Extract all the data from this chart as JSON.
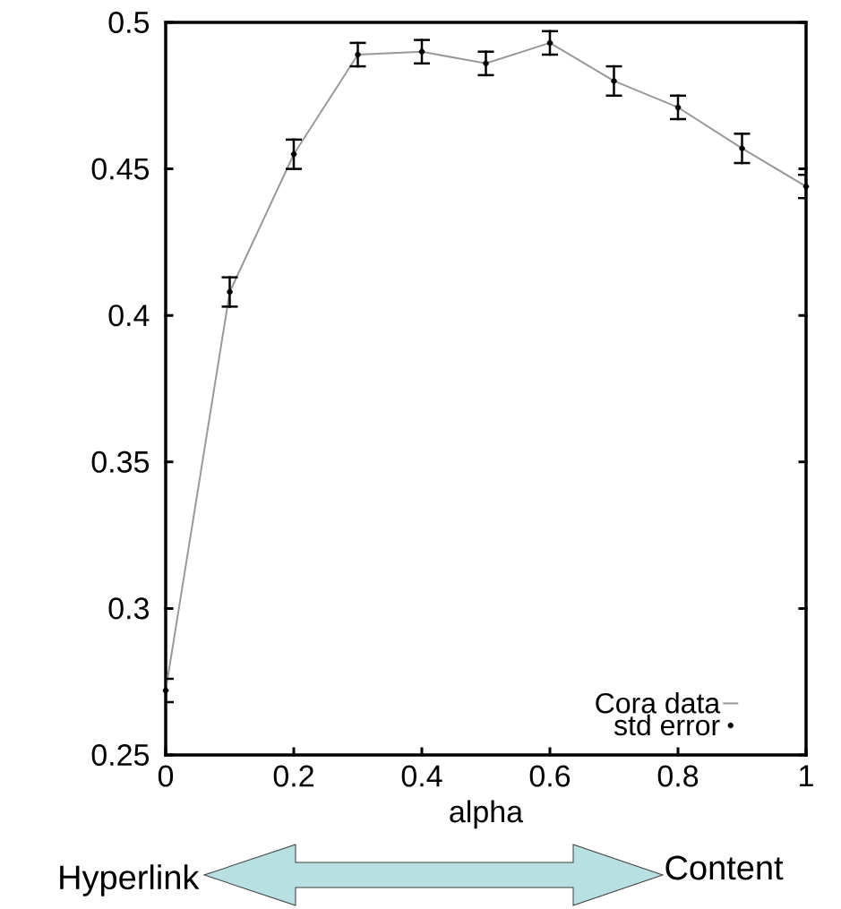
{
  "chart_data": {
    "type": "line",
    "x": [
      0,
      0.1,
      0.2,
      0.3,
      0.4,
      0.5,
      0.6,
      0.7,
      0.8,
      0.9,
      1
    ],
    "series": [
      {
        "name": "Cora data",
        "color": "#999999",
        "values": [
          0.272,
          0.408,
          0.455,
          0.489,
          0.49,
          0.486,
          0.493,
          0.48,
          0.471,
          0.457,
          0.444
        ]
      },
      {
        "name": "std error",
        "type": "scatter",
        "color": "#000000",
        "values": [
          0.272,
          0.408,
          0.455,
          0.489,
          0.49,
          0.486,
          0.493,
          0.48,
          0.471,
          0.457,
          0.444
        ],
        "errors": [
          0.004,
          0.005,
          0.005,
          0.004,
          0.004,
          0.004,
          0.004,
          0.005,
          0.004,
          0.005,
          0.004
        ]
      }
    ],
    "xlabel": "alpha",
    "xlim": [
      0,
      1
    ],
    "xticks": [
      0,
      0.2,
      0.4,
      0.6,
      0.8,
      1
    ],
    "ylim": [
      0.25,
      0.5
    ],
    "yticks": [
      0.25,
      0.3,
      0.35,
      0.4,
      0.45,
      0.5
    ],
    "grid": false,
    "legend": "bottom right",
    "annotations": [
      "Hyperlink",
      "Content"
    ]
  }
}
